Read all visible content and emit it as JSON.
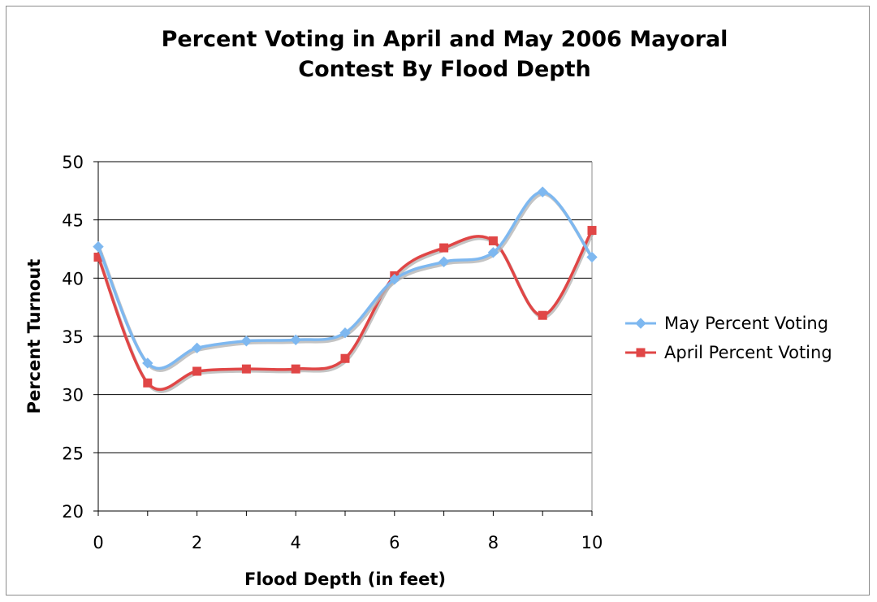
{
  "chart_data": {
    "type": "line",
    "title_lines": [
      "Percent Voting in April and May 2006 Mayoral",
      "Contest By Flood Depth"
    ],
    "xlabel": "Flood Depth (in feet)",
    "ylabel": "Percent Turnout",
    "xlim": [
      0,
      10
    ],
    "ylim": [
      20,
      50
    ],
    "xticks": [
      0,
      2,
      4,
      6,
      8,
      10
    ],
    "yticks": [
      20,
      25,
      30,
      35,
      40,
      45,
      50
    ],
    "grid": "horizontal",
    "smooth": true,
    "legend": "right",
    "x": [
      0,
      1,
      2,
      3,
      4,
      5,
      6,
      7,
      8,
      9,
      10
    ],
    "series": [
      {
        "name": "May Percent Voting",
        "color": "#7eb8f0",
        "marker": "diamond",
        "values": [
          42.7,
          32.7,
          34.0,
          34.6,
          34.7,
          35.3,
          39.9,
          41.4,
          42.2,
          47.4,
          41.8
        ]
      },
      {
        "name": "April Percent Voting",
        "color": "#e04646",
        "marker": "square",
        "values": [
          41.8,
          31.0,
          32.0,
          32.2,
          32.2,
          33.1,
          40.2,
          42.6,
          43.2,
          36.8,
          44.1
        ]
      }
    ]
  }
}
